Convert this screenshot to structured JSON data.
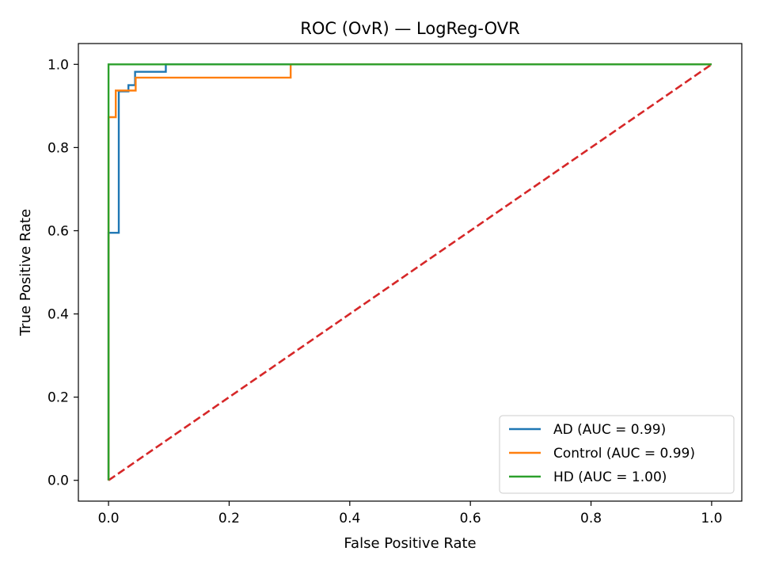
{
  "chart_data": {
    "type": "line",
    "title": "ROC (OvR) — LogReg-OVR",
    "xlabel": "False Positive Rate",
    "ylabel": "True Positive Rate",
    "xlim": [
      -0.05,
      1.05
    ],
    "ylim": [
      -0.05,
      1.05
    ],
    "xticks": [
      "0.0",
      "0.2",
      "0.4",
      "0.6",
      "0.8",
      "1.0"
    ],
    "yticks": [
      "0.0",
      "0.2",
      "0.4",
      "0.6",
      "0.8",
      "1.0"
    ],
    "grid": false,
    "legend_position": "lower-right",
    "series": [
      {
        "name": "AD (AUC = 0.99)",
        "color": "#1f77b4",
        "x": [
          0.0,
          0.0,
          0.0,
          0.017,
          0.017,
          0.033,
          0.033,
          0.044,
          0.044,
          0.095,
          0.095,
          1.0
        ],
        "y": [
          0.0,
          0.595,
          0.595,
          0.595,
          0.935,
          0.935,
          0.95,
          0.95,
          0.982,
          0.982,
          1.0,
          1.0
        ]
      },
      {
        "name": "Control (AUC = 0.99)",
        "color": "#ff7f0e",
        "x": [
          0.0,
          0.0,
          0.0,
          0.012,
          0.012,
          0.045,
          0.045,
          0.302,
          0.302,
          1.0
        ],
        "y": [
          0.0,
          0.873,
          0.873,
          0.873,
          0.937,
          0.937,
          0.968,
          0.968,
          1.0,
          1.0
        ]
      },
      {
        "name": "HD (AUC = 1.00)",
        "color": "#2ca02c",
        "x": [
          0.0,
          0.0,
          1.0
        ],
        "y": [
          0.0,
          1.0,
          1.0
        ]
      }
    ],
    "reference_line": {
      "color": "#d62728",
      "style": "dashed",
      "x": [
        0.0,
        1.0
      ],
      "y": [
        0.0,
        1.0
      ]
    }
  }
}
